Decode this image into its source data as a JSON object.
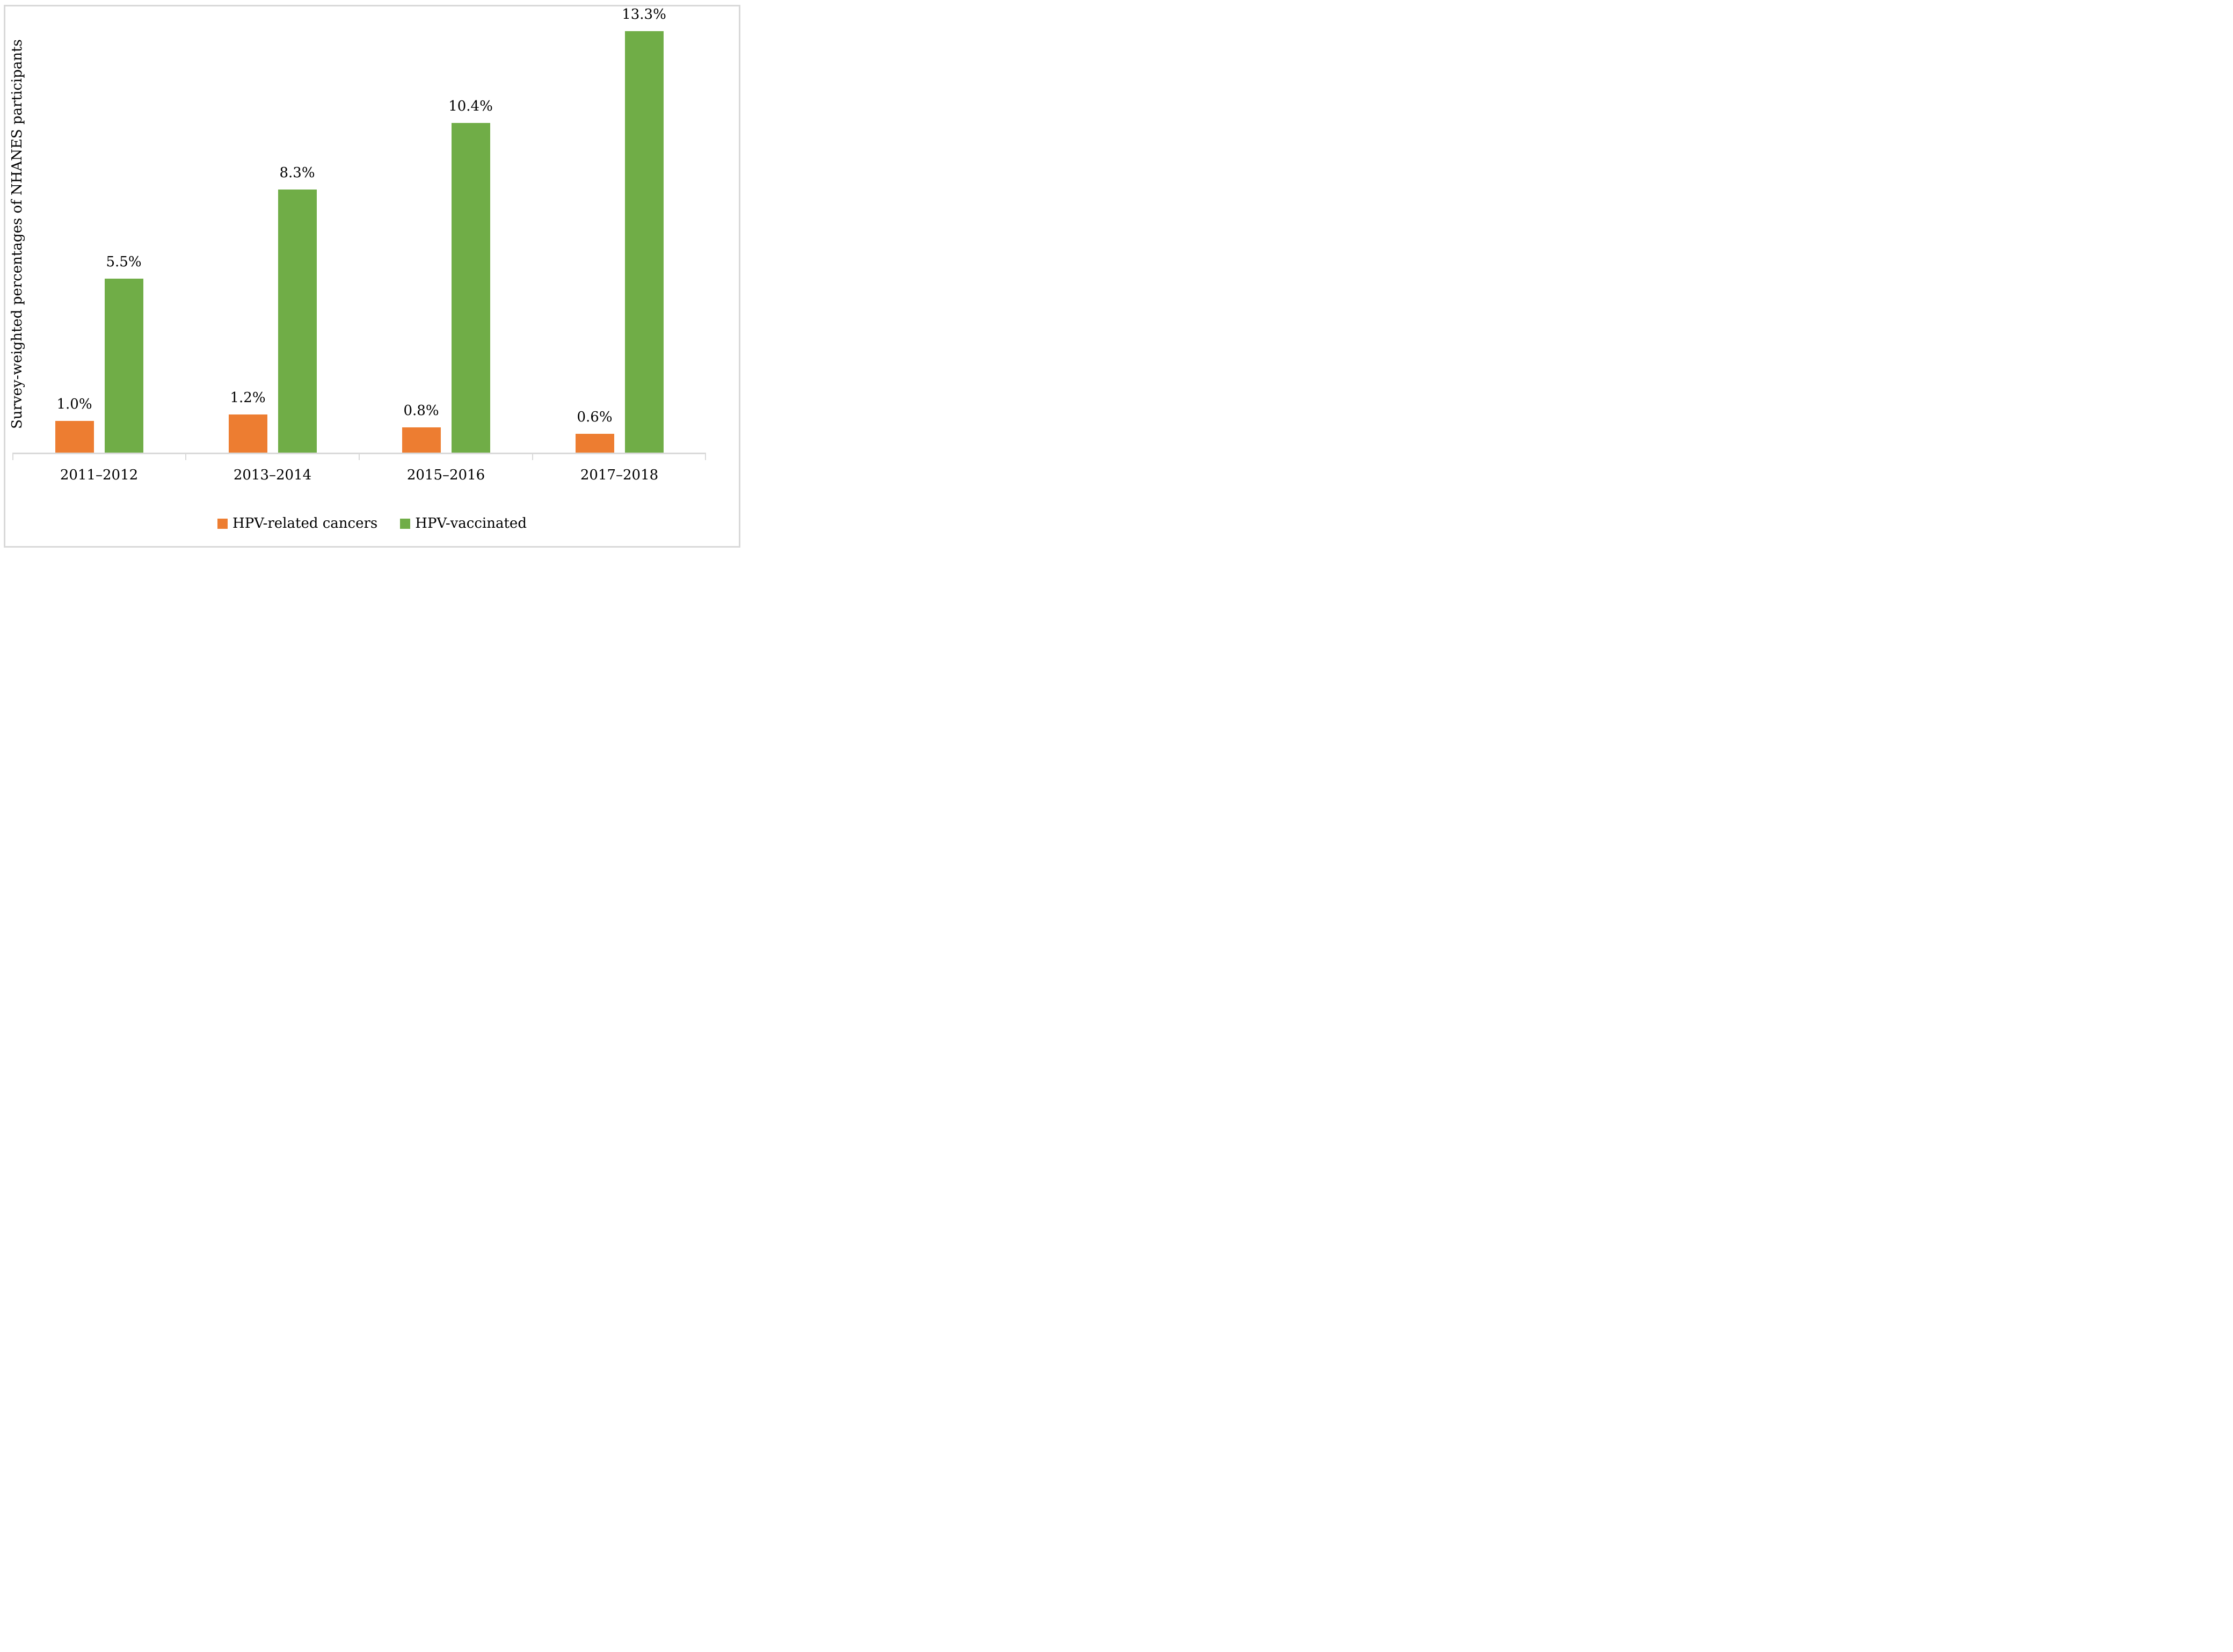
{
  "figure": {
    "background": "#FFFFFF",
    "border_color": "#D9D9D9",
    "axis_color": "#D9D9D9",
    "text_color": "#000000"
  },
  "legend": {
    "items": [
      {
        "label": "HPV-related cancers",
        "color": "#ED7D31"
      },
      {
        "label": "HPV-vaccinated",
        "color": "#70AD47"
      }
    ]
  },
  "chart_data": {
    "type": "bar",
    "title": "",
    "categories": [
      "2011–2012",
      "2013–2014",
      "2015–2016",
      "2017–2018"
    ],
    "series": [
      {
        "name": "HPV-related cancers",
        "color": "#ED7D31",
        "values": [
          1.0,
          1.2,
          0.8,
          0.6
        ],
        "data_labels": [
          "1.0%",
          "1.2%",
          "0.8%",
          "0.6%"
        ]
      },
      {
        "name": "HPV-vaccinated",
        "color": "#70AD47",
        "values": [
          5.5,
          8.3,
          10.4,
          13.3
        ],
        "data_labels": [
          "5.5%",
          "8.3%",
          "10.4%",
          "13.3%"
        ]
      }
    ],
    "xlabel": "",
    "ylabel": "Survey-weighted percentages of NHANES participants",
    "ylim": [
      0,
      13.5
    ],
    "grid": false,
    "y_axis_ticks_visible": false,
    "data_labels": true,
    "legend_position": "bottom"
  }
}
